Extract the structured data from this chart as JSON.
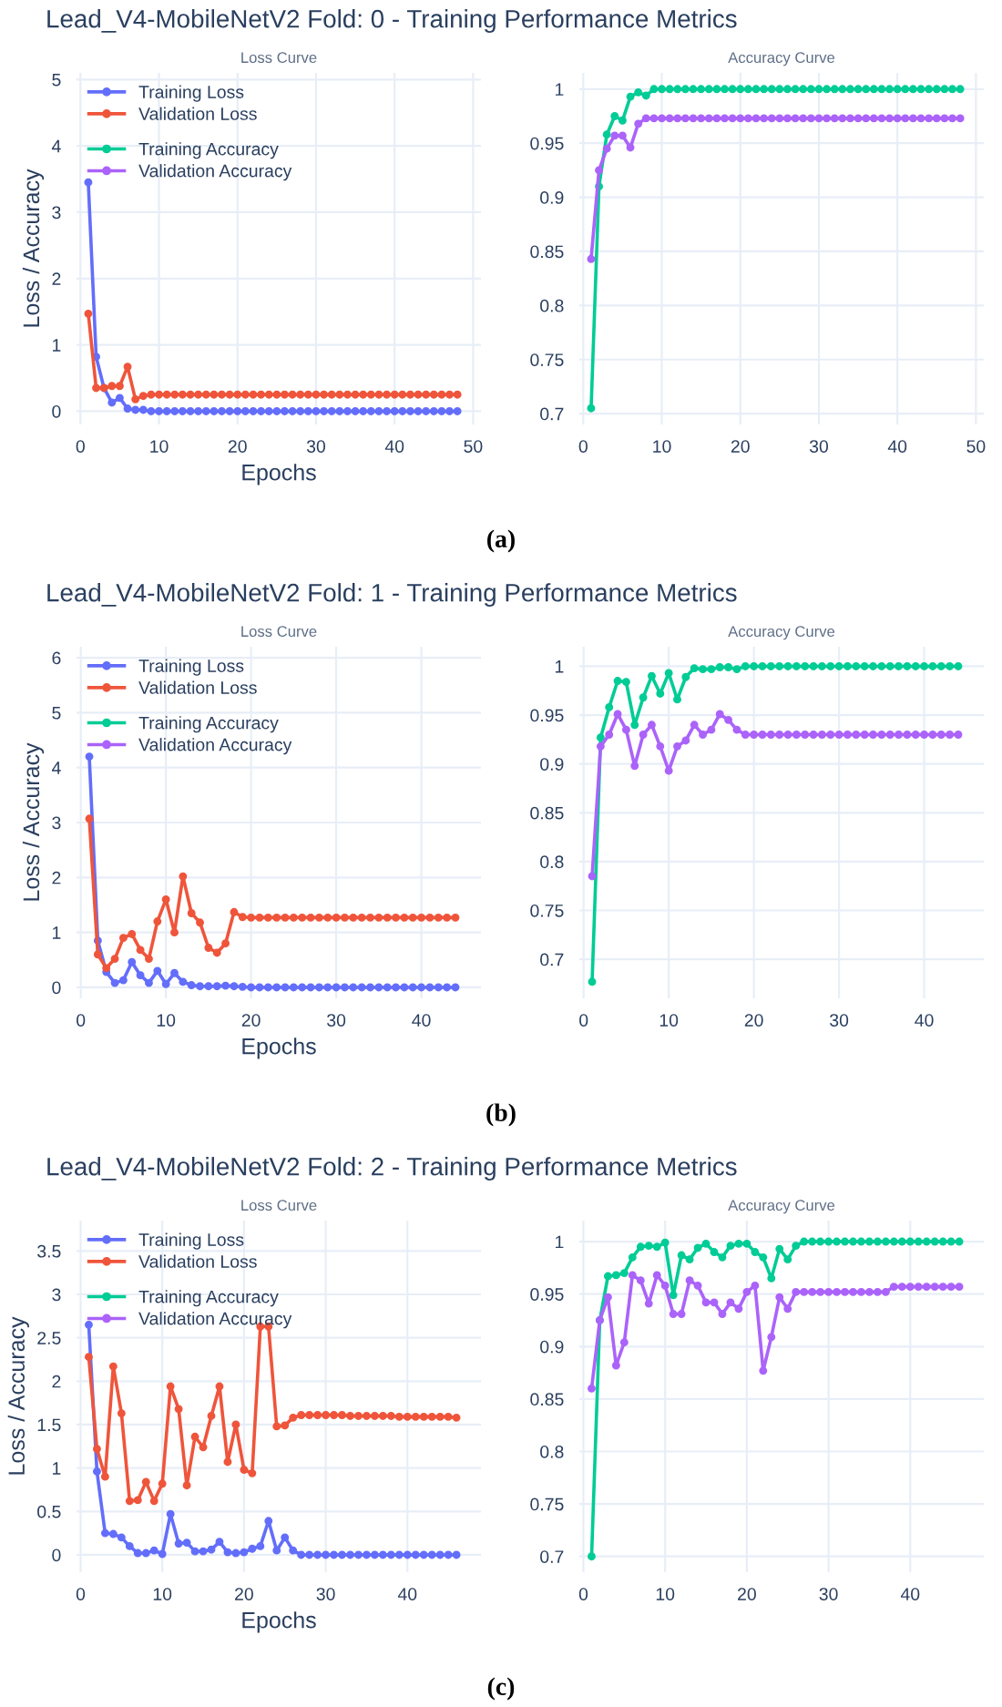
{
  "chart_data": [
    {
      "type": "line",
      "title": "Lead_V4-MobileNetV2 Fold: 0 - Training Performance Metrics",
      "subtitle": "Loss Curve",
      "xlabel": "Epochs",
      "ylabel": "Loss / Accuracy",
      "annotations": [
        "(a)"
      ],
      "marker": "circle",
      "grid": true,
      "legend": "top left",
      "xlim": [
        -0.5,
        51
      ],
      "xticks": [
        0,
        10,
        20,
        30,
        40,
        50
      ],
      "ylim": [
        -0.2,
        5.1
      ],
      "yticks": [
        0,
        1,
        2,
        3,
        4,
        5
      ],
      "x": [
        1,
        2,
        3,
        4,
        5,
        6,
        7,
        8,
        9,
        10,
        11,
        12,
        13,
        14,
        15,
        16,
        17,
        18,
        19,
        20,
        21,
        22,
        23,
        24,
        25,
        26,
        27,
        28,
        29,
        30,
        31,
        32,
        33,
        34,
        35,
        36,
        37,
        38,
        39,
        40,
        41,
        42,
        43,
        44,
        45,
        46,
        47,
        48
      ],
      "series": [
        {
          "name": "Training Loss",
          "color": "#636efa",
          "values": [
            3.45,
            0.82,
            0.35,
            0.13,
            0.2,
            0.04,
            0.02,
            0.02,
            0,
            0,
            0,
            0,
            0,
            0,
            0,
            0,
            0,
            0,
            0,
            0,
            0,
            0,
            0,
            0,
            0,
            0,
            0,
            0,
            0,
            0,
            0,
            0,
            0,
            0,
            0,
            0,
            0,
            0,
            0,
            0,
            0,
            0,
            0,
            0,
            0,
            0,
            0,
            0
          ]
        },
        {
          "name": "Validation Loss",
          "color": "#ef553b",
          "values": [
            1.47,
            0.35,
            0.35,
            0.38,
            0.38,
            0.67,
            0.18,
            0.23,
            0.25,
            0.25,
            0.25,
            0.25,
            0.25,
            0.25,
            0.25,
            0.25,
            0.25,
            0.25,
            0.25,
            0.25,
            0.25,
            0.25,
            0.25,
            0.25,
            0.25,
            0.25,
            0.25,
            0.25,
            0.25,
            0.25,
            0.25,
            0.25,
            0.25,
            0.25,
            0.25,
            0.25,
            0.25,
            0.25,
            0.25,
            0.25,
            0.25,
            0.25,
            0.25,
            0.25,
            0.25,
            0.25,
            0.25,
            0.25
          ]
        }
      ]
    },
    {
      "type": "line",
      "subtitle": "Accuracy Curve",
      "marker": "circle",
      "grid": true,
      "legend": "top left",
      "xlim": [
        -0.5,
        51
      ],
      "xticks": [
        0,
        10,
        20,
        30,
        40,
        50
      ],
      "ylim": [
        0.69,
        1.015
      ],
      "yticks": [
        0.7,
        0.75,
        0.8,
        0.85,
        0.9,
        0.95,
        1
      ],
      "x": [
        1,
        2,
        3,
        4,
        5,
        6,
        7,
        8,
        9,
        10,
        11,
        12,
        13,
        14,
        15,
        16,
        17,
        18,
        19,
        20,
        21,
        22,
        23,
        24,
        25,
        26,
        27,
        28,
        29,
        30,
        31,
        32,
        33,
        34,
        35,
        36,
        37,
        38,
        39,
        40,
        41,
        42,
        43,
        44,
        45,
        46,
        47,
        48
      ],
      "series": [
        {
          "name": "Training Accuracy",
          "color": "#00cc96",
          "values": [
            0.705,
            0.91,
            0.958,
            0.975,
            0.971,
            0.993,
            0.997,
            0.994,
            1,
            1,
            1,
            1,
            1,
            1,
            1,
            1,
            1,
            1,
            1,
            1,
            1,
            1,
            1,
            1,
            1,
            1,
            1,
            1,
            1,
            1,
            1,
            1,
            1,
            1,
            1,
            1,
            1,
            1,
            1,
            1,
            1,
            1,
            1,
            1,
            1,
            1,
            1,
            1
          ]
        },
        {
          "name": "Validation Accuracy",
          "color": "#ab63fa",
          "values": [
            0.843,
            0.925,
            0.945,
            0.957,
            0.957,
            0.946,
            0.968,
            0.973,
            0.973,
            0.973,
            0.973,
            0.973,
            0.973,
            0.973,
            0.973,
            0.973,
            0.973,
            0.973,
            0.973,
            0.973,
            0.973,
            0.973,
            0.973,
            0.973,
            0.973,
            0.973,
            0.973,
            0.973,
            0.973,
            0.973,
            0.973,
            0.973,
            0.973,
            0.973,
            0.973,
            0.973,
            0.973,
            0.973,
            0.973,
            0.973,
            0.973,
            0.973,
            0.973,
            0.973,
            0.973,
            0.973,
            0.973,
            0.973
          ]
        }
      ]
    },
    {
      "type": "line",
      "title": "Lead_V4-MobileNetV2 Fold: 1 - Training Performance Metrics",
      "subtitle": "Loss Curve",
      "xlabel": "Epochs",
      "ylabel": "Loss / Accuracy",
      "annotations": [
        "(b)"
      ],
      "marker": "circle",
      "grid": true,
      "legend": "top left",
      "xlim": [
        -0.5,
        47
      ],
      "xticks": [
        0,
        10,
        20,
        30,
        40
      ],
      "ylim": [
        -0.2,
        6.2
      ],
      "yticks": [
        0,
        1,
        2,
        3,
        4,
        5,
        6
      ],
      "x": [
        1,
        2,
        3,
        4,
        5,
        6,
        7,
        8,
        9,
        10,
        11,
        12,
        13,
        14,
        15,
        16,
        17,
        18,
        19,
        20,
        21,
        22,
        23,
        24,
        25,
        26,
        27,
        28,
        29,
        30,
        31,
        32,
        33,
        34,
        35,
        36,
        37,
        38,
        39,
        40,
        41,
        42,
        43,
        44
      ],
      "series": [
        {
          "name": "Training Loss",
          "color": "#636efa",
          "values": [
            4.2,
            0.85,
            0.28,
            0.08,
            0.13,
            0.46,
            0.22,
            0.08,
            0.3,
            0.06,
            0.26,
            0.1,
            0.04,
            0.02,
            0.02,
            0.02,
            0.03,
            0.02,
            0.01,
            0,
            0,
            0,
            0,
            0,
            0,
            0,
            0,
            0,
            0,
            0,
            0,
            0,
            0,
            0,
            0,
            0,
            0,
            0,
            0,
            0,
            0,
            0,
            0,
            0
          ]
        },
        {
          "name": "Validation Loss",
          "color": "#ef553b",
          "values": [
            3.07,
            0.6,
            0.35,
            0.52,
            0.9,
            0.97,
            0.68,
            0.52,
            1.2,
            1.6,
            1.0,
            2.02,
            1.35,
            1.18,
            0.72,
            0.63,
            0.8,
            1.37,
            1.28,
            1.27,
            1.27,
            1.27,
            1.27,
            1.27,
            1.27,
            1.27,
            1.27,
            1.27,
            1.27,
            1.27,
            1.27,
            1.27,
            1.27,
            1.27,
            1.27,
            1.27,
            1.27,
            1.27,
            1.27,
            1.27,
            1.27,
            1.27,
            1.27,
            1.27
          ]
        }
      ]
    },
    {
      "type": "line",
      "subtitle": "Accuracy Curve",
      "marker": "circle",
      "grid": true,
      "legend": "top left",
      "xlim": [
        -0.5,
        47
      ],
      "xticks": [
        0,
        10,
        20,
        30,
        40
      ],
      "ylim": [
        0.66,
        1.02
      ],
      "yticks": [
        0.7,
        0.75,
        0.8,
        0.85,
        0.9,
        0.95,
        1
      ],
      "x": [
        1,
        2,
        3,
        4,
        5,
        6,
        7,
        8,
        9,
        10,
        11,
        12,
        13,
        14,
        15,
        16,
        17,
        18,
        19,
        20,
        21,
        22,
        23,
        24,
        25,
        26,
        27,
        28,
        29,
        30,
        31,
        32,
        33,
        34,
        35,
        36,
        37,
        38,
        39,
        40,
        41,
        42,
        43,
        44
      ],
      "series": [
        {
          "name": "Training Accuracy",
          "color": "#00cc96",
          "values": [
            0.677,
            0.927,
            0.958,
            0.985,
            0.984,
            0.94,
            0.968,
            0.99,
            0.972,
            0.993,
            0.966,
            0.989,
            0.998,
            0.997,
            0.997,
            0.999,
            0.999,
            0.997,
            1,
            1,
            1,
            1,
            1,
            1,
            1,
            1,
            1,
            1,
            1,
            1,
            1,
            1,
            1,
            1,
            1,
            1,
            1,
            1,
            1,
            1,
            1,
            1,
            1,
            1
          ]
        },
        {
          "name": "Validation Accuracy",
          "color": "#ab63fa",
          "values": [
            0.785,
            0.918,
            0.93,
            0.951,
            0.935,
            0.898,
            0.93,
            0.94,
            0.918,
            0.893,
            0.918,
            0.924,
            0.94,
            0.93,
            0.935,
            0.951,
            0.945,
            0.935,
            0.93,
            0.93,
            0.93,
            0.93,
            0.93,
            0.93,
            0.93,
            0.93,
            0.93,
            0.93,
            0.93,
            0.93,
            0.93,
            0.93,
            0.93,
            0.93,
            0.93,
            0.93,
            0.93,
            0.93,
            0.93,
            0.93,
            0.93,
            0.93,
            0.93,
            0.93
          ]
        }
      ]
    },
    {
      "type": "line",
      "title": "Lead_V4-MobileNetV2 Fold: 2 - Training Performance Metrics",
      "subtitle": "Loss Curve",
      "xlabel": "Epochs",
      "ylabel": "Loss / Accuracy",
      "annotations": [
        "(c)"
      ],
      "marker": "circle",
      "grid": true,
      "legend": "top left",
      "xlim": [
        -0.5,
        49
      ],
      "xticks": [
        0,
        10,
        20,
        30,
        40
      ],
      "ylim": [
        -0.2,
        3.85
      ],
      "yticks": [
        0,
        0.5,
        1,
        1.5,
        2,
        2.5,
        3,
        3.5
      ],
      "x": [
        1,
        2,
        3,
        4,
        5,
        6,
        7,
        8,
        9,
        10,
        11,
        12,
        13,
        14,
        15,
        16,
        17,
        18,
        19,
        20,
        21,
        22,
        23,
        24,
        25,
        26,
        27,
        28,
        29,
        30,
        31,
        32,
        33,
        34,
        35,
        36,
        37,
        38,
        39,
        40,
        41,
        42,
        43,
        44,
        45,
        46
      ],
      "series": [
        {
          "name": "Training Loss",
          "color": "#636efa",
          "values": [
            2.65,
            0.96,
            0.25,
            0.24,
            0.2,
            0.1,
            0.02,
            0.02,
            0.05,
            0.01,
            0.47,
            0.13,
            0.14,
            0.04,
            0.04,
            0.06,
            0.15,
            0.03,
            0.02,
            0.03,
            0.07,
            0.1,
            0.39,
            0.05,
            0.2,
            0.05,
            0,
            0,
            0,
            0,
            0,
            0,
            0,
            0,
            0,
            0,
            0,
            0,
            0,
            0,
            0,
            0,
            0,
            0,
            0,
            0
          ]
        },
        {
          "name": "Validation Loss",
          "color": "#ef553b",
          "values": [
            2.28,
            1.22,
            0.9,
            2.17,
            1.63,
            0.62,
            0.63,
            0.84,
            0.62,
            0.82,
            1.94,
            1.68,
            0.8,
            1.36,
            1.24,
            1.6,
            1.94,
            1.07,
            1.5,
            0.98,
            0.94,
            2.63,
            2.63,
            1.48,
            1.49,
            1.58,
            1.61,
            1.61,
            1.61,
            1.61,
            1.61,
            1.61,
            1.6,
            1.6,
            1.6,
            1.6,
            1.6,
            1.6,
            1.59,
            1.59,
            1.59,
            1.59,
            1.59,
            1.59,
            1.59,
            1.58
          ]
        }
      ]
    },
    {
      "type": "line",
      "subtitle": "Accuracy Curve",
      "marker": "circle",
      "grid": true,
      "legend": "top left",
      "xlim": [
        -0.5,
        49
      ],
      "xticks": [
        0,
        10,
        20,
        30,
        40
      ],
      "ylim": [
        0.685,
        1.02
      ],
      "yticks": [
        0.7,
        0.75,
        0.8,
        0.85,
        0.9,
        0.95,
        1
      ],
      "x": [
        1,
        2,
        3,
        4,
        5,
        6,
        7,
        8,
        9,
        10,
        11,
        12,
        13,
        14,
        15,
        16,
        17,
        18,
        19,
        20,
        21,
        22,
        23,
        24,
        25,
        26,
        27,
        28,
        29,
        30,
        31,
        32,
        33,
        34,
        35,
        36,
        37,
        38,
        39,
        40,
        41,
        42,
        43,
        44,
        45,
        46
      ],
      "series": [
        {
          "name": "Training Accuracy",
          "color": "#00cc96",
          "values": [
            0.7,
            0.925,
            0.967,
            0.968,
            0.97,
            0.985,
            0.995,
            0.996,
            0.995,
            0.999,
            0.949,
            0.987,
            0.983,
            0.994,
            0.998,
            0.99,
            0.985,
            0.996,
            0.998,
            0.998,
            0.99,
            0.985,
            0.965,
            0.993,
            0.983,
            0.996,
            1,
            1,
            1,
            1,
            1,
            1,
            1,
            1,
            1,
            1,
            1,
            1,
            1,
            1,
            1,
            1,
            1,
            1,
            1,
            1
          ]
        },
        {
          "name": "Validation Accuracy",
          "color": "#ab63fa",
          "values": [
            0.86,
            0.925,
            0.947,
            0.882,
            0.904,
            0.968,
            0.963,
            0.941,
            0.968,
            0.958,
            0.931,
            0.931,
            0.963,
            0.958,
            0.942,
            0.942,
            0.931,
            0.942,
            0.936,
            0.952,
            0.958,
            0.877,
            0.909,
            0.947,
            0.936,
            0.952,
            0.952,
            0.952,
            0.952,
            0.952,
            0.952,
            0.952,
            0.952,
            0.952,
            0.952,
            0.952,
            0.952,
            0.957,
            0.957,
            0.957,
            0.957,
            0.957,
            0.957,
            0.957,
            0.957,
            0.957
          ]
        }
      ]
    }
  ]
}
